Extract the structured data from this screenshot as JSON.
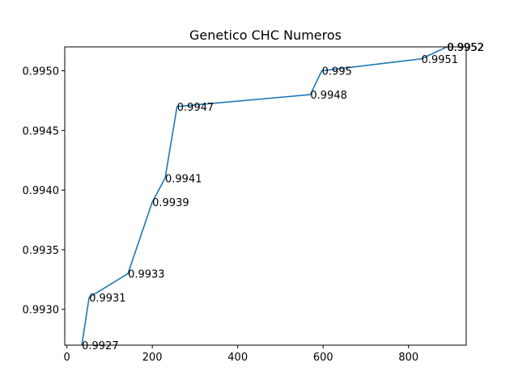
{
  "chart_data": {
    "type": "line",
    "title": "Genetico CHC Numeros",
    "xlabel": "",
    "ylabel": "",
    "xlim": [
      -5,
      935
    ],
    "ylim": [
      0.9927,
      0.9952
    ],
    "x_ticks": [
      0,
      200,
      400,
      600,
      800
    ],
    "x_tick_labels": [
      "0",
      "200",
      "400",
      "600",
      "800"
    ],
    "y_ticks": [
      0.993,
      0.9935,
      0.994,
      0.9945,
      0.995
    ],
    "y_tick_labels": [
      "0.9930",
      "0.9935",
      "0.9940",
      "0.9945",
      "0.9950"
    ],
    "grid": false,
    "series": [
      {
        "color": "#1f77b4",
        "points": [
          {
            "x": 35,
            "y": 0.9927,
            "label": "0.9927"
          },
          {
            "x": 52,
            "y": 0.9931,
            "label": "0.9931"
          },
          {
            "x": 143,
            "y": 0.9933,
            "label": "0.9933"
          },
          {
            "x": 200,
            "y": 0.9939,
            "label": "0.9939"
          },
          {
            "x": 230,
            "y": 0.9941,
            "label": "0.9941"
          },
          {
            "x": 258,
            "y": 0.9947,
            "label": "0.9947"
          },
          {
            "x": 570,
            "y": 0.9948,
            "label": "0.9948"
          },
          {
            "x": 597,
            "y": 0.995,
            "label": "0.995"
          },
          {
            "x": 830,
            "y": 0.9951,
            "label": "0.9951"
          },
          {
            "x": 890,
            "y": 0.9952,
            "label": "0.9952"
          },
          {
            "x": 891,
            "y": 0.9952,
            "label": "0.9952"
          }
        ]
      }
    ]
  }
}
